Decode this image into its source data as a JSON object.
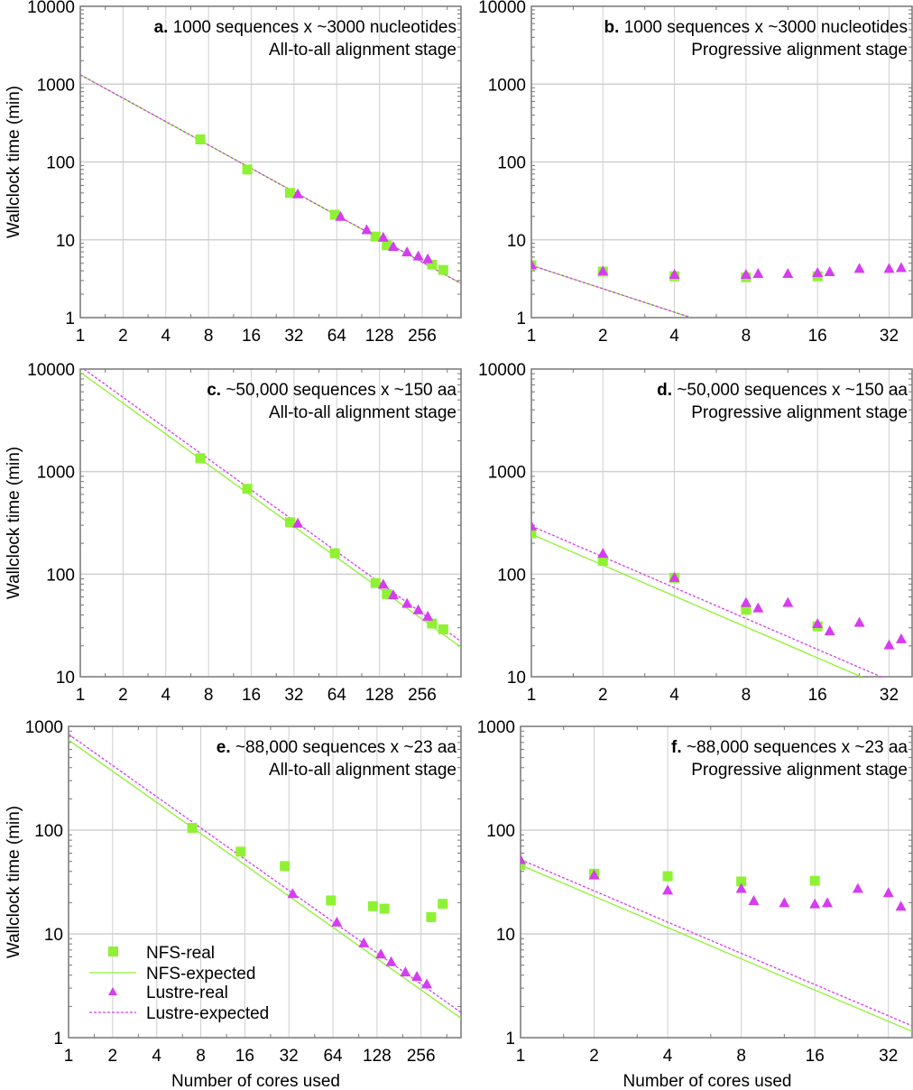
{
  "colors": {
    "nfs": "#8ef233",
    "lustre": "#d63cf0",
    "grid": "#cfcfcf",
    "frame": "#777777"
  },
  "legend": {
    "placement": "bottom-left of panel e",
    "entries": [
      {
        "label": "NFS-real",
        "marker": "square",
        "series": "nfs"
      },
      {
        "label": "NFS-expected",
        "marker": "solid-line",
        "series": "nfs"
      },
      {
        "label": "Lustre-real",
        "marker": "triangle",
        "series": "lustre"
      },
      {
        "label": "Lustre-expected",
        "marker": "dashed-line",
        "series": "lustre"
      }
    ]
  },
  "chart_data": [
    {
      "id": "a",
      "type": "scatter",
      "scale": "log-log",
      "title_bold": "a.",
      "title": "1000 sequences x ~3000 nucleotides",
      "subtitle": "All-to-all alignment stage",
      "xlabel": "",
      "ylabel": "Wallclock time (min)",
      "xlim": [
        1,
        480
      ],
      "ylim": [
        1,
        10000
      ],
      "xticks": [
        1,
        2,
        4,
        8,
        16,
        32,
        64,
        128,
        256
      ],
      "yticks": [
        1,
        10,
        100,
        1000,
        10000
      ],
      "grid": true,
      "series": [
        {
          "name": "NFS-real",
          "kind": "points",
          "marker": "square",
          "x": [
            7,
            15,
            30,
            62,
            120,
            144,
            300,
            360
          ],
          "y": [
            195,
            80,
            40,
            21,
            11,
            8.5,
            4.8,
            4.1
          ]
        },
        {
          "name": "NFS-expected",
          "kind": "line",
          "style": "solid",
          "x": [
            1,
            480
          ],
          "y": [
            1320,
            2.75
          ]
        },
        {
          "name": "Lustre-real",
          "kind": "points",
          "marker": "triangle",
          "x": [
            34,
            68,
            104,
            136,
            160,
            200,
            240,
            280
          ],
          "y": [
            39,
            20,
            13.5,
            10.8,
            8.2,
            7,
            6.2,
            5.7
          ]
        },
        {
          "name": "Lustre-expected",
          "kind": "line",
          "style": "dashed",
          "x": [
            1,
            480
          ],
          "y": [
            1320,
            2.75
          ]
        }
      ]
    },
    {
      "id": "b",
      "type": "scatter",
      "scale": "log-log",
      "title_bold": "b.",
      "title": "1000 sequences x ~3000 nucleotides",
      "subtitle": "Progressive alignment stage",
      "xlabel": "",
      "ylabel": "",
      "xlim": [
        1,
        40
      ],
      "ylim": [
        1,
        10000
      ],
      "xticks": [
        1,
        2,
        4,
        8,
        16,
        32
      ],
      "yticks": [
        1,
        10,
        100,
        1000,
        10000
      ],
      "grid": true,
      "series": [
        {
          "name": "NFS-real",
          "kind": "points",
          "marker": "square",
          "x": [
            1,
            2,
            4,
            8,
            16
          ],
          "y": [
            4.7,
            3.9,
            3.4,
            3.3,
            3.4
          ]
        },
        {
          "name": "NFS-expected",
          "kind": "line",
          "style": "solid",
          "x": [
            1,
            40
          ],
          "y": [
            4.7,
            0.1175
          ]
        },
        {
          "name": "Lustre-real",
          "kind": "points",
          "marker": "triangle",
          "x": [
            1,
            2,
            4,
            8,
            9,
            12,
            16,
            18,
            24,
            32,
            36
          ],
          "y": [
            4.8,
            4.0,
            3.6,
            3.6,
            3.7,
            3.7,
            3.8,
            3.9,
            4.3,
            4.3,
            4.4
          ]
        },
        {
          "name": "Lustre-expected",
          "kind": "line",
          "style": "dashed",
          "x": [
            1,
            40
          ],
          "y": [
            4.7,
            0.1175
          ]
        }
      ]
    },
    {
      "id": "c",
      "type": "scatter",
      "scale": "log-log",
      "title_bold": "c.",
      "title": "~50,000 sequences x ~150 aa",
      "subtitle": "All-to-all alignment stage",
      "xlabel": "",
      "ylabel": "Wallclock time (min)",
      "xlim": [
        1,
        480
      ],
      "ylim": [
        10,
        10000
      ],
      "xticks": [
        1,
        2,
        4,
        8,
        16,
        32,
        64,
        128,
        256
      ],
      "yticks": [
        10,
        100,
        1000,
        10000
      ],
      "grid": true,
      "series": [
        {
          "name": "NFS-real",
          "kind": "points",
          "marker": "square",
          "x": [
            7,
            15,
            30,
            62,
            120,
            144,
            300,
            360
          ],
          "y": [
            1350,
            680,
            320,
            160,
            82,
            64,
            33,
            29
          ]
        },
        {
          "name": "NFS-expected",
          "kind": "line",
          "style": "solid",
          "x": [
            1,
            480
          ],
          "y": [
            9300,
            19.4
          ]
        },
        {
          "name": "Lustre-real",
          "kind": "points",
          "marker": "triangle",
          "x": [
            34,
            136,
            160,
            200,
            240,
            280
          ],
          "y": [
            315,
            80,
            63,
            52,
            45,
            39
          ]
        },
        {
          "name": "Lustre-expected",
          "kind": "line",
          "style": "dashed",
          "x": [
            1,
            480
          ],
          "y": [
            10600,
            22.1
          ]
        }
      ]
    },
    {
      "id": "d",
      "type": "scatter",
      "scale": "log-log",
      "title_bold": "d.",
      "title": "~50,000 sequences x ~150 aa",
      "subtitle": "Progressive alignment stage",
      "xlabel": "",
      "ylabel": "",
      "xlim": [
        1,
        40
      ],
      "ylim": [
        10,
        10000
      ],
      "xticks": [
        1,
        2,
        4,
        8,
        16,
        32
      ],
      "yticks": [
        10,
        100,
        1000,
        10000
      ],
      "grid": true,
      "series": [
        {
          "name": "NFS-real",
          "kind": "points",
          "marker": "square",
          "x": [
            1,
            2,
            4,
            8,
            16
          ],
          "y": [
            250,
            135,
            92,
            45,
            31
          ]
        },
        {
          "name": "NFS-expected",
          "kind": "line",
          "style": "solid",
          "x": [
            1,
            40
          ],
          "y": [
            245,
            6.1
          ]
        },
        {
          "name": "Lustre-real",
          "kind": "points",
          "marker": "triangle",
          "x": [
            1,
            2,
            4,
            8,
            9,
            12,
            16,
            18,
            24,
            32,
            36
          ],
          "y": [
            295,
            160,
            93,
            53,
            47,
            53,
            33,
            28,
            34,
            20.5,
            23.5
          ]
        },
        {
          "name": "Lustre-expected",
          "kind": "line",
          "style": "dashed",
          "x": [
            1,
            40
          ],
          "y": [
            295,
            7.4
          ]
        }
      ]
    },
    {
      "id": "e",
      "type": "scatter",
      "scale": "log-log",
      "title_bold": "e.",
      "title": "~88,000 sequences x ~23 aa",
      "subtitle": "All-to-all alignment stage",
      "xlabel": "Number of cores used",
      "ylabel": "Wallclock time (min)",
      "xlim": [
        1,
        480
      ],
      "ylim": [
        1,
        1000
      ],
      "xticks": [
        1,
        2,
        4,
        8,
        16,
        32,
        64,
        128,
        256
      ],
      "yticks": [
        1,
        10,
        100,
        1000
      ],
      "grid": true,
      "series": [
        {
          "name": "NFS-real",
          "kind": "points",
          "marker": "square",
          "x": [
            7,
            15,
            30,
            62,
            120,
            144,
            300,
            360
          ],
          "y": [
            105,
            62,
            45,
            21,
            18.5,
            17.5,
            14.5,
            19.5
          ]
        },
        {
          "name": "NFS-expected",
          "kind": "line",
          "style": "solid",
          "x": [
            1,
            480
          ],
          "y": [
            740,
            1.54
          ]
        },
        {
          "name": "Lustre-real",
          "kind": "points",
          "marker": "triangle",
          "x": [
            34,
            68,
            104,
            136,
            160,
            200,
            240,
            280
          ],
          "y": [
            24.5,
            13,
            8.2,
            6.4,
            5.4,
            4.3,
            3.9,
            3.3
          ]
        },
        {
          "name": "Lustre-expected",
          "kind": "line",
          "style": "dashed",
          "x": [
            1,
            480
          ],
          "y": [
            840,
            1.75
          ]
        }
      ]
    },
    {
      "id": "f",
      "type": "scatter",
      "scale": "log-log",
      "title_bold": "f.",
      "title": "~88,000 sequences x ~23 aa",
      "subtitle": "Progressive alignment stage",
      "xlabel": "Number of cores used",
      "ylabel": "",
      "xlim": [
        1,
        40
      ],
      "ylim": [
        1,
        1000
      ],
      "xticks": [
        1,
        2,
        4,
        8,
        16,
        32
      ],
      "yticks": [
        1,
        10,
        100,
        1000
      ],
      "grid": true,
      "series": [
        {
          "name": "NFS-real",
          "kind": "points",
          "marker": "square",
          "x": [
            1,
            2,
            4,
            8,
            16
          ],
          "y": [
            46,
            38,
            36,
            32,
            32.5
          ]
        },
        {
          "name": "NFS-expected",
          "kind": "line",
          "style": "solid",
          "x": [
            1,
            40
          ],
          "y": [
            46,
            1.15
          ]
        },
        {
          "name": "Lustre-real",
          "kind": "points",
          "marker": "triangle",
          "x": [
            1,
            2,
            4,
            8,
            9,
            12,
            16,
            18,
            24,
            32,
            36
          ],
          "y": [
            52,
            37,
            26.5,
            27.5,
            21,
            20,
            19.5,
            20,
            27.5,
            25,
            18.5
          ]
        },
        {
          "name": "Lustre-expected",
          "kind": "line",
          "style": "dashed",
          "x": [
            1,
            40
          ],
          "y": [
            52,
            1.3
          ]
        }
      ]
    }
  ]
}
